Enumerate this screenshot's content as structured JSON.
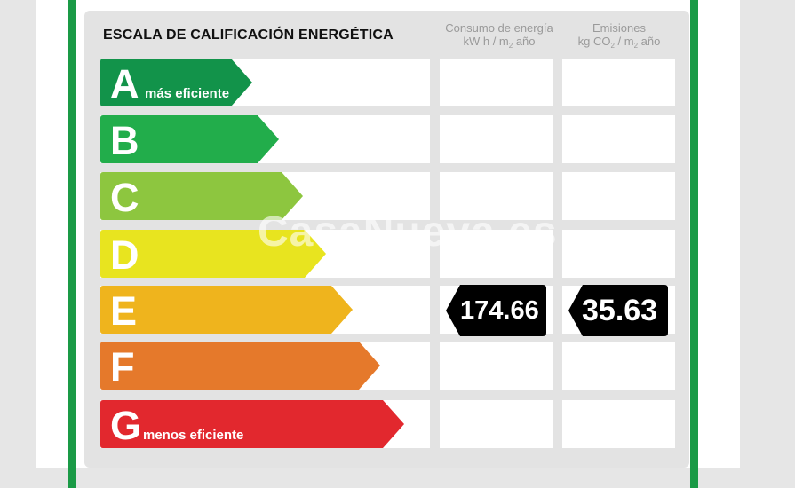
{
  "title": "ESCALA DE CALIFICACIÓN ENERGÉTICA",
  "columns": {
    "energy": {
      "line1": "Consumo de energía",
      "line2_pre": "kW h / m",
      "line2_sub": "2",
      "line2_post": " año"
    },
    "emissions": {
      "line1": "Emisiones",
      "line2_pre": "kg CO",
      "line2_sub": "2",
      "line2_mid": " / m",
      "line2_sub2": "2",
      "line2_post": " año"
    }
  },
  "ratings": [
    {
      "letter": "A",
      "note": "más eficiente",
      "color": "#12934a"
    },
    {
      "letter": "B",
      "note": "",
      "color": "#22ad4b"
    },
    {
      "letter": "C",
      "note": "",
      "color": "#8dc63f"
    },
    {
      "letter": "D",
      "note": "",
      "color": "#e8e41f"
    },
    {
      "letter": "E",
      "note": "",
      "color": "#efb41d"
    },
    {
      "letter": "F",
      "note": "",
      "color": "#e5792b"
    },
    {
      "letter": "G",
      "note": "menos eficiente",
      "color": "#e2282e"
    }
  ],
  "current": {
    "rating": "E",
    "energy": "174.66",
    "emissions": "35.63"
  },
  "watermark": "CasaNueva.es"
}
